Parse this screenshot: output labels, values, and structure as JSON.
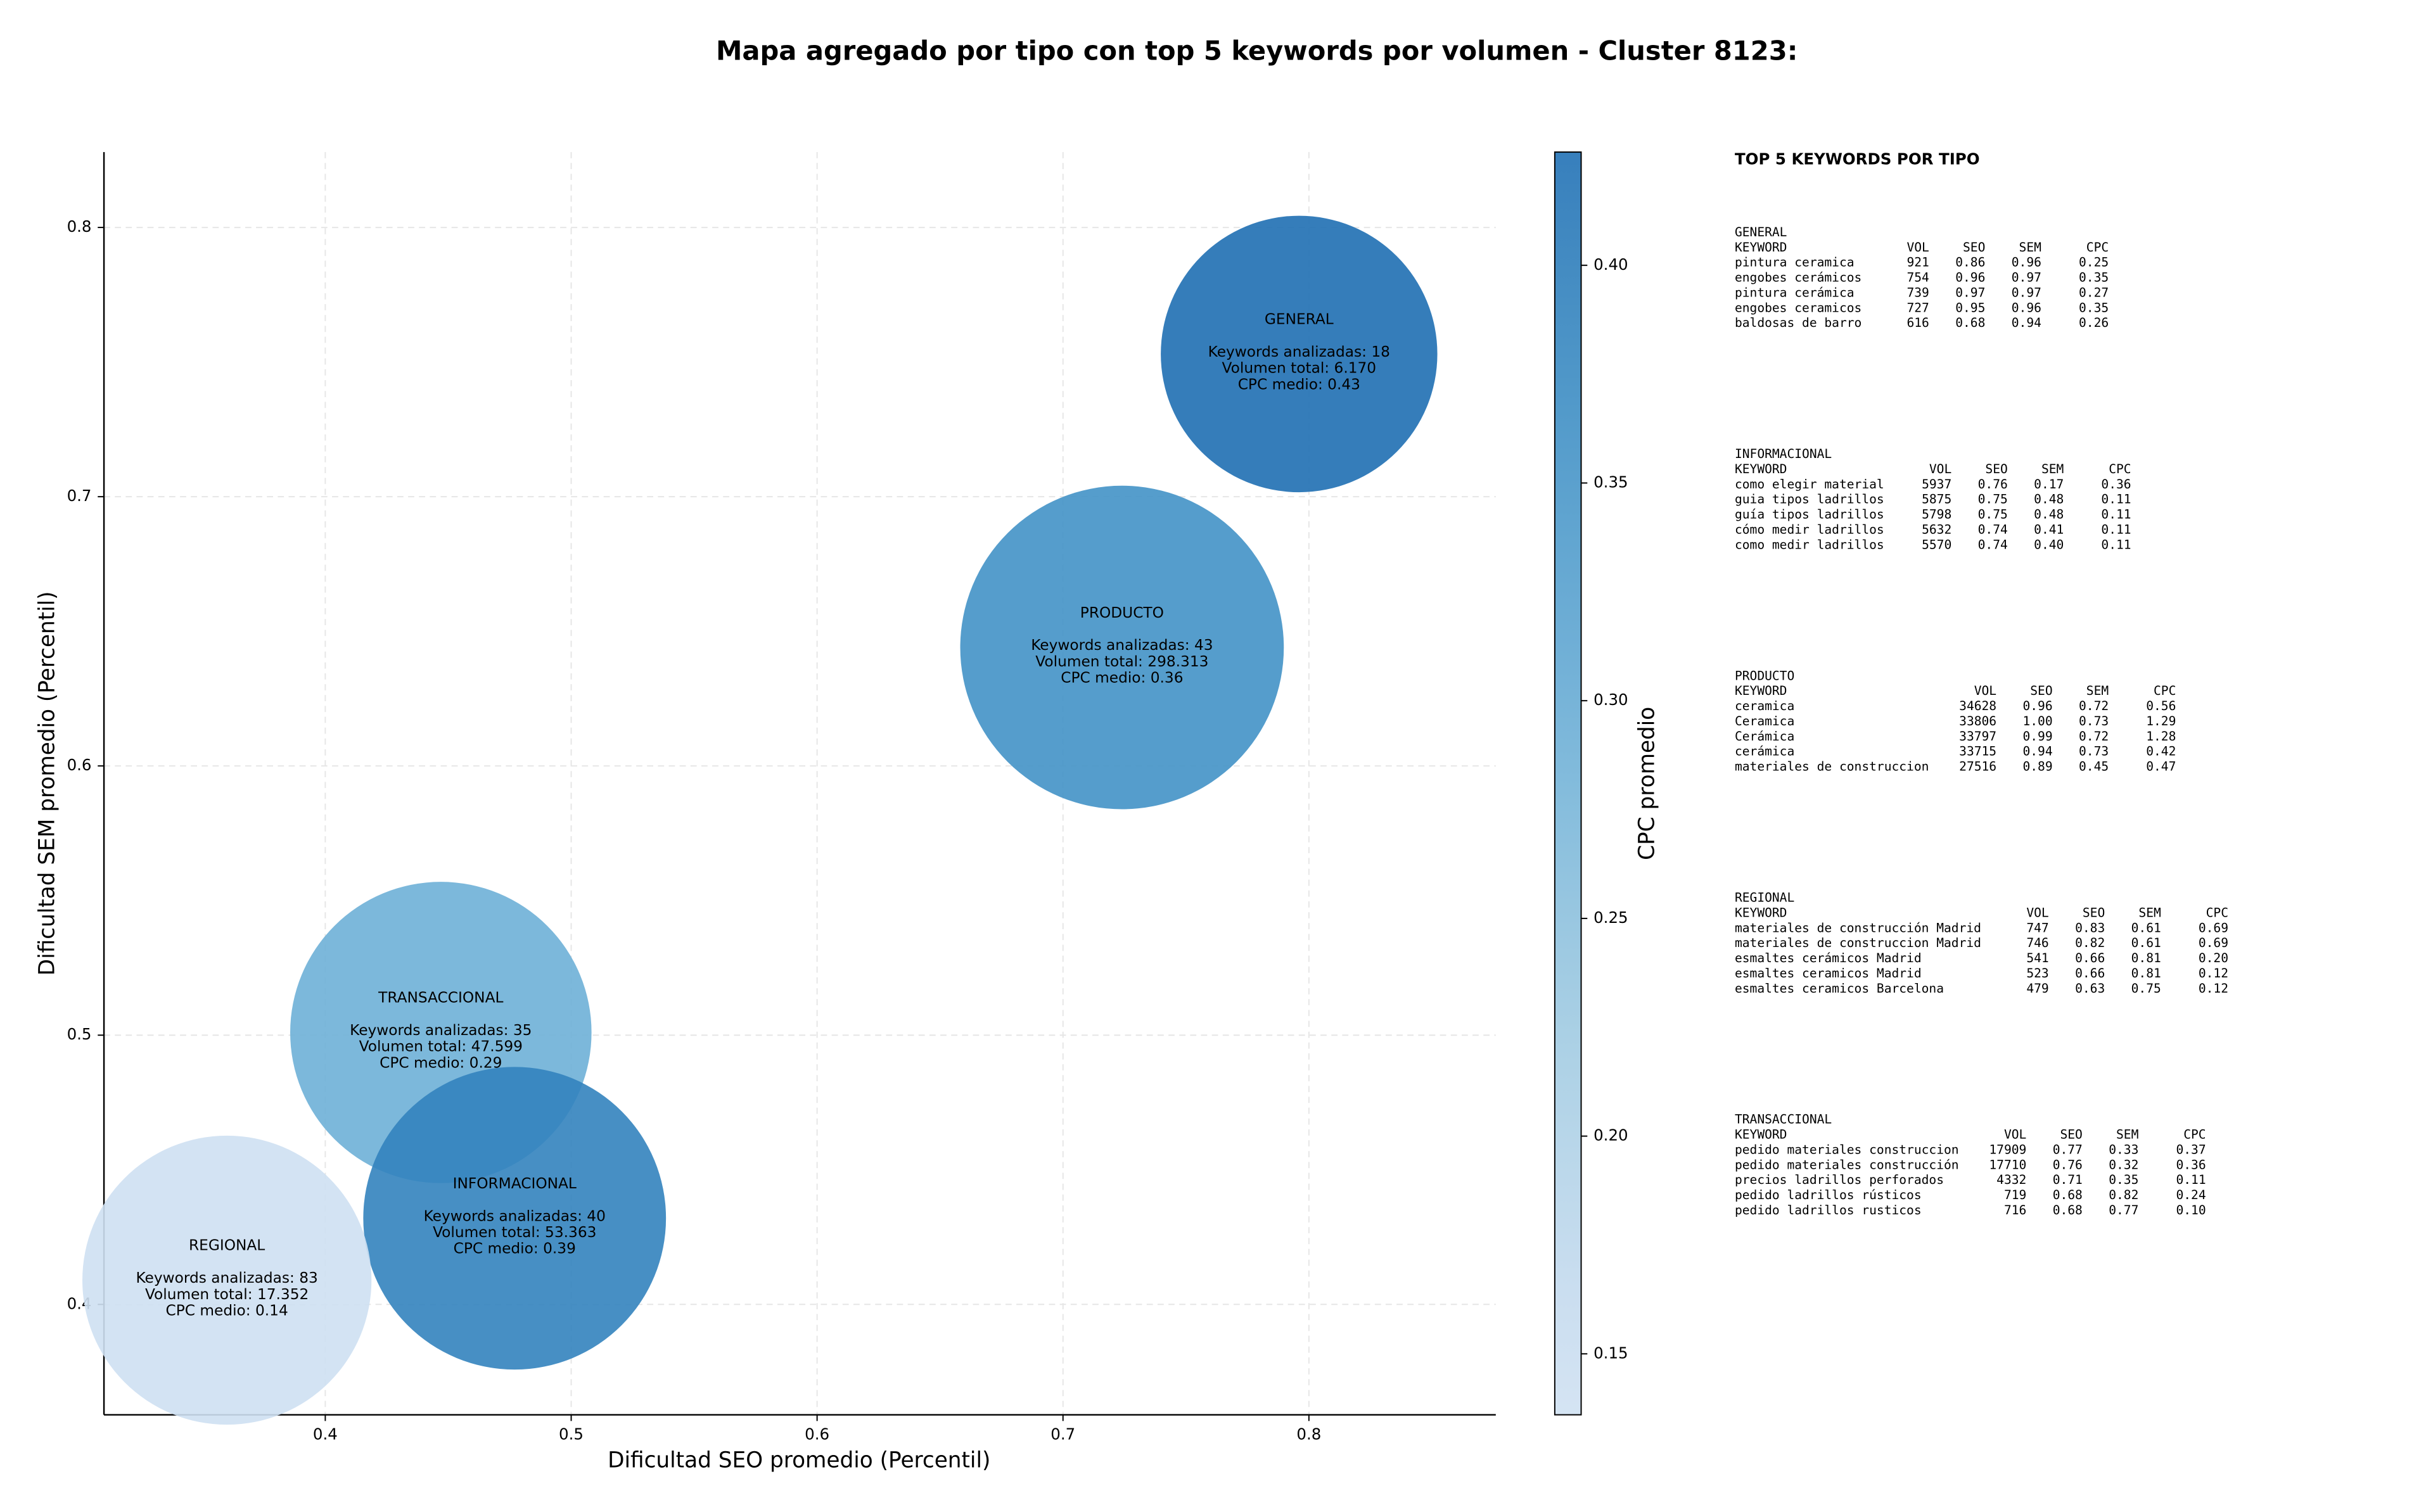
{
  "chart_data": {
    "type": "scatter",
    "title": "Mapa agregado por tipo con top 5 keywords por volumen - Cluster 8123:",
    "xlabel": "Dificultad SEO promedio (Percentil)",
    "ylabel": "Dificultad SEM promedio (Percentil)",
    "colorbar_label": "CPC promedio",
    "colormap": "Blues",
    "grid": true,
    "xlim": [
      0.31,
      0.876
    ],
    "ylim": [
      0.359,
      0.828
    ],
    "xticks": [
      0.4,
      0.5,
      0.6,
      0.7,
      0.8
    ],
    "yticks": [
      0.4,
      0.5,
      0.6,
      0.7,
      0.8
    ],
    "clim": [
      0.136,
      0.426
    ],
    "cticks": [
      0.15,
      {
        "value": 0.2,
        "label": "0.20"
      },
      0.25,
      {
        "value": 0.3,
        "label": "0.30"
      },
      0.35,
      {
        "value": 0.4,
        "label": "0.40"
      }
    ],
    "series": [
      {
        "name": "GENERAL",
        "x": 0.796,
        "y": 0.753,
        "volume": 6170,
        "cpc": 0.43,
        "labels": [
          "Keywords analizadas: 18",
          "Volumen total: 6.170",
          "CPC medio: 0.43"
        ]
      },
      {
        "name": "PRODUCTO",
        "x": 0.724,
        "y": 0.644,
        "volume": 298313,
        "cpc": 0.36,
        "labels": [
          "Keywords analizadas: 43",
          "Volumen total: 298.313",
          "CPC medio: 0.36"
        ]
      },
      {
        "name": "TRANSACCIONAL",
        "x": 0.447,
        "y": 0.501,
        "volume": 47599,
        "cpc": 0.29,
        "labels": [
          "Keywords analizadas: 35",
          "Volumen total: 47.599",
          "CPC medio: 0.29"
        ]
      },
      {
        "name": "INFORMACIONAL",
        "x": 0.477,
        "y": 0.432,
        "volume": 53363,
        "cpc": 0.39,
        "labels": [
          "Keywords analizadas: 40",
          "Volumen total: 53.363",
          "CPC medio: 0.39"
        ]
      },
      {
        "name": "REGIONAL",
        "x": 0.36,
        "y": 0.409,
        "volume": 17352,
        "cpc": 0.14,
        "labels": [
          "Keywords analizadas: 83",
          "Volumen total: 17.352",
          "CPC medio: 0.14"
        ]
      }
    ]
  },
  "panel": {
    "title": "TOP 5 KEYWORDS POR TIPO",
    "headers": [
      "KEYWORD",
      "VOL",
      "SEO",
      "SEM",
      "CPC"
    ],
    "sections": [
      {
        "title": "GENERAL",
        "rows": [
          [
            "pintura ceramica",
            "921",
            "0.86",
            "0.96",
            "0.25"
          ],
          [
            "engobes cerámicos",
            "754",
            "0.96",
            "0.97",
            "0.35"
          ],
          [
            "pintura cerámica",
            "739",
            "0.97",
            "0.97",
            "0.27"
          ],
          [
            "engobes ceramicos",
            "727",
            "0.95",
            "0.96",
            "0.35"
          ],
          [
            "baldosas de barro",
            "616",
            "0.68",
            "0.94",
            "0.26"
          ]
        ]
      },
      {
        "title": "INFORMACIONAL",
        "rows": [
          [
            "como elegir material",
            "5937",
            "0.76",
            "0.17",
            "0.36"
          ],
          [
            "guia tipos ladrillos",
            "5875",
            "0.75",
            "0.48",
            "0.11"
          ],
          [
            "guía tipos ladrillos",
            "5798",
            "0.75",
            "0.48",
            "0.11"
          ],
          [
            "cómo medir ladrillos",
            "5632",
            "0.74",
            "0.41",
            "0.11"
          ],
          [
            "como medir ladrillos",
            "5570",
            "0.74",
            "0.40",
            "0.11"
          ]
        ]
      },
      {
        "title": "PRODUCTO",
        "rows": [
          [
            "ceramica",
            "34628",
            "0.96",
            "0.72",
            "0.56"
          ],
          [
            "Ceramica",
            "33806",
            "1.00",
            "0.73",
            "1.29"
          ],
          [
            "Cerámica",
            "33797",
            "0.99",
            "0.72",
            "1.28"
          ],
          [
            "cerámica",
            "33715",
            "0.94",
            "0.73",
            "0.42"
          ],
          [
            "materiales de construccion",
            "27516",
            "0.89",
            "0.45",
            "0.47"
          ]
        ]
      },
      {
        "title": "REGIONAL",
        "rows": [
          [
            "materiales de construcción Madrid",
            "747",
            "0.83",
            "0.61",
            "0.69"
          ],
          [
            "materiales de construccion Madrid",
            "746",
            "0.82",
            "0.61",
            "0.69"
          ],
          [
            "esmaltes cerámicos Madrid",
            "541",
            "0.66",
            "0.81",
            "0.20"
          ],
          [
            "esmaltes ceramicos Madrid",
            "523",
            "0.66",
            "0.81",
            "0.12"
          ],
          [
            "esmaltes ceramicos Barcelona",
            "479",
            "0.63",
            "0.75",
            "0.12"
          ]
        ]
      },
      {
        "title": "TRANSACCIONAL",
        "rows": [
          [
            "pedido materiales construccion",
            "17909",
            "0.77",
            "0.33",
            "0.37"
          ],
          [
            "pedido materiales construcción",
            "17710",
            "0.76",
            "0.32",
            "0.36"
          ],
          [
            "precios ladrillos perforados",
            "4332",
            "0.71",
            "0.35",
            "0.11"
          ],
          [
            "pedido ladrillos rústicos",
            "719",
            "0.68",
            "0.82",
            "0.24"
          ],
          [
            "pedido ladrillos rusticos",
            "716",
            "0.68",
            "0.77",
            "0.10"
          ]
        ]
      }
    ]
  }
}
